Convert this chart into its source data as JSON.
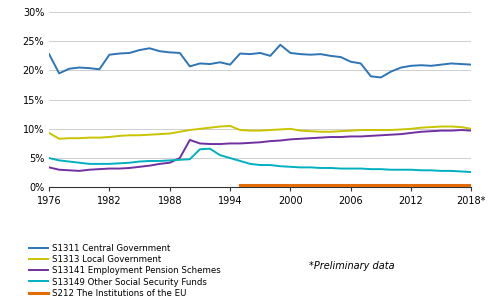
{
  "years": [
    1976,
    1977,
    1978,
    1979,
    1980,
    1981,
    1982,
    1983,
    1984,
    1985,
    1986,
    1987,
    1988,
    1989,
    1990,
    1991,
    1992,
    1993,
    1994,
    1995,
    1996,
    1997,
    1998,
    1999,
    2000,
    2001,
    2002,
    2003,
    2004,
    2005,
    2006,
    2007,
    2008,
    2009,
    2010,
    2011,
    2012,
    2013,
    2014,
    2015,
    2016,
    2017,
    2018
  ],
  "S1311": [
    22.8,
    19.5,
    20.3,
    20.5,
    20.4,
    20.2,
    22.7,
    22.9,
    23.0,
    23.5,
    23.8,
    23.3,
    23.1,
    23.0,
    20.7,
    21.2,
    21.1,
    21.4,
    21.0,
    22.9,
    22.8,
    23.0,
    22.5,
    24.4,
    23.0,
    22.8,
    22.7,
    22.8,
    22.5,
    22.3,
    21.5,
    21.2,
    19.0,
    18.8,
    19.8,
    20.5,
    20.8,
    20.9,
    20.8,
    21.0,
    21.2,
    21.1,
    21.0
  ],
  "S1313": [
    9.3,
    8.3,
    8.4,
    8.4,
    8.5,
    8.5,
    8.6,
    8.8,
    8.9,
    8.9,
    9.0,
    9.1,
    9.2,
    9.5,
    9.8,
    10.0,
    10.2,
    10.4,
    10.5,
    9.8,
    9.7,
    9.7,
    9.8,
    9.9,
    10.0,
    9.7,
    9.6,
    9.5,
    9.5,
    9.6,
    9.7,
    9.8,
    9.8,
    9.8,
    9.8,
    9.9,
    10.0,
    10.2,
    10.3,
    10.4,
    10.4,
    10.3,
    10.0
  ],
  "S13141": [
    3.4,
    3.0,
    2.9,
    2.8,
    3.0,
    3.1,
    3.2,
    3.2,
    3.3,
    3.5,
    3.7,
    4.0,
    4.2,
    5.0,
    8.1,
    7.5,
    7.4,
    7.4,
    7.5,
    7.5,
    7.6,
    7.7,
    7.9,
    8.0,
    8.2,
    8.3,
    8.4,
    8.5,
    8.6,
    8.6,
    8.7,
    8.7,
    8.8,
    8.9,
    9.0,
    9.1,
    9.3,
    9.5,
    9.6,
    9.7,
    9.7,
    9.8,
    9.7
  ],
  "S13149": [
    5.0,
    4.6,
    4.4,
    4.2,
    4.0,
    4.0,
    4.0,
    4.1,
    4.2,
    4.4,
    4.5,
    4.5,
    4.6,
    4.7,
    4.8,
    6.5,
    6.6,
    5.5,
    5.0,
    4.5,
    4.0,
    3.8,
    3.8,
    3.6,
    3.5,
    3.4,
    3.4,
    3.3,
    3.3,
    3.2,
    3.2,
    3.2,
    3.1,
    3.1,
    3.0,
    3.0,
    3.0,
    2.9,
    2.9,
    2.8,
    2.8,
    2.7,
    2.6
  ],
  "S212": [
    null,
    null,
    null,
    null,
    null,
    null,
    null,
    null,
    null,
    null,
    null,
    null,
    null,
    null,
    null,
    null,
    null,
    null,
    null,
    0.4,
    0.4,
    0.4,
    0.4,
    0.4,
    0.4,
    0.4,
    0.4,
    0.4,
    0.4,
    0.4,
    0.4,
    0.4,
    0.4,
    0.4,
    0.4,
    0.4,
    0.4,
    0.4,
    0.4,
    0.4,
    0.4,
    0.4,
    0.4
  ],
  "colors": {
    "S1311": "#2e75b6",
    "S1313": "#c9c400",
    "S13141": "#7030a0",
    "S13149": "#00b0c0",
    "S212": "#e36c09"
  },
  "labels": {
    "S1311": "S1311 Central Government",
    "S1313": "S1313 Local Government",
    "S13141": "S13141 Employment Pension Schemes",
    "S13149": "S13149 Other Social Security Funds",
    "S212": "S212 The Institutions of the EU"
  },
  "ylim": [
    0,
    30
  ],
  "yticks": [
    0,
    5,
    10,
    15,
    20,
    25,
    30
  ],
  "ytick_labels": [
    "0%",
    "5%",
    "10%",
    "15%",
    "20%",
    "25%",
    "30%"
  ],
  "xticks": [
    1976,
    1982,
    1988,
    1994,
    2000,
    2006,
    2012,
    2018
  ],
  "note": "*Preliminary data",
  "bg_color": "#ffffff",
  "grid_color": "#c8c8c8"
}
